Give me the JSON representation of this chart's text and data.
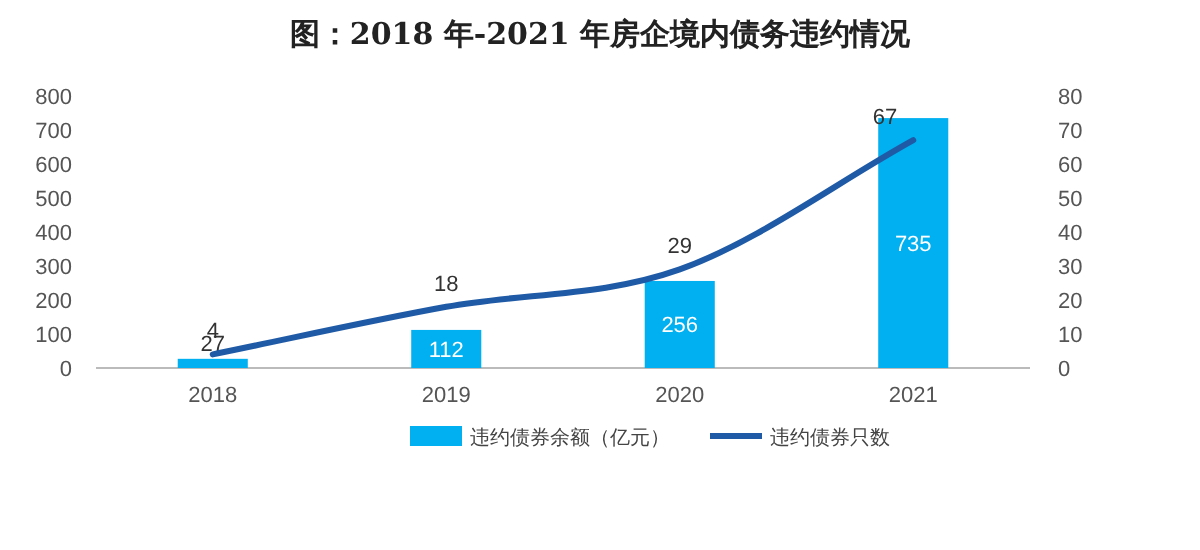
{
  "chart_data": {
    "type": "bar",
    "title": "图：2018 年-2021 年房企境内债务违约情况",
    "categories": [
      "2018",
      "2019",
      "2020",
      "2021"
    ],
    "series": [
      {
        "name": "违约债券余额（亿元）",
        "color": "#00b0f0",
        "values": [
          27,
          112,
          256,
          735
        ]
      },
      {
        "name": "违约债券只数",
        "type": "line",
        "color": "#1f5aa6",
        "axis": "y2",
        "values": [
          4,
          18,
          29,
          67
        ]
      }
    ],
    "ylim": [
      0,
      800
    ],
    "yticks": [
      0,
      100,
      200,
      300,
      400,
      500,
      600,
      700,
      800
    ],
    "y2lim": [
      0,
      80
    ],
    "y2ticks": [
      0,
      10,
      20,
      30,
      40,
      50,
      60,
      70,
      80
    ],
    "data_labels": true,
    "legend": "bottom"
  }
}
